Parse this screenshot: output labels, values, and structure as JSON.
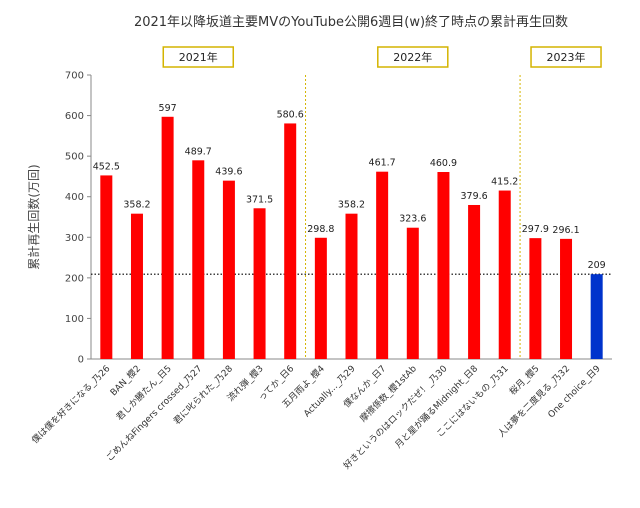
{
  "chart_data": {
    "type": "bar",
    "title": "2021年以降坂道主要MVのYouTube公開6週目(w)終了時点の累計再生回数",
    "ylabel": "累計再生回数(万回)",
    "xlabel": "",
    "ylim": [
      0,
      700
    ],
    "yticks": [
      0,
      100,
      200,
      300,
      400,
      500,
      600,
      700
    ],
    "grid": false,
    "reference_line": 209,
    "categories": [
      "僕は僕を好きになる_乃26",
      "BAN_櫻2",
      "君しか勝たん_日5",
      "ごめんねFingers crossed_乃27",
      "君に叱られた_乃28",
      "流れ弾_櫻3",
      "ってか_日6",
      "五月雨よ_櫻4",
      "Actually..._乃29",
      "僕なんか_日7",
      "摩擦係数_櫻1stAb",
      "好きというのはロックだぜ！_乃30",
      "月と星が踊るMidnight_日8",
      "ここにはないもの_乃31",
      "桜月_櫻5",
      "人は夢を二度見る_乃32",
      "One choice_日9"
    ],
    "values": [
      452.5,
      358.2,
      597,
      489.7,
      439.6,
      371.5,
      580.6,
      298.8,
      358.2,
      461.7,
      323.6,
      460.9,
      379.6,
      415.2,
      297.9,
      296.1,
      209
    ],
    "labels": [
      "452.5",
      "358.2",
      "597",
      "489.7",
      "439.6",
      "371.5",
      "580.6",
      "298.8",
      "358.2",
      "461.7",
      "323.6",
      "460.9",
      "379.6",
      "415.2",
      "297.9",
      "296.1",
      "209"
    ],
    "highlight_index": 16,
    "colors": {
      "bar": "#ff0000",
      "highlight": "#0033cc",
      "divider": "#d4b400",
      "reference": "#000000",
      "box_border": "#d4b400"
    },
    "eras": [
      {
        "label": "2021年",
        "start": 0,
        "end": 6
      },
      {
        "label": "2022年",
        "start": 7,
        "end": 13
      },
      {
        "label": "2023年",
        "start": 14,
        "end": 16
      }
    ]
  }
}
